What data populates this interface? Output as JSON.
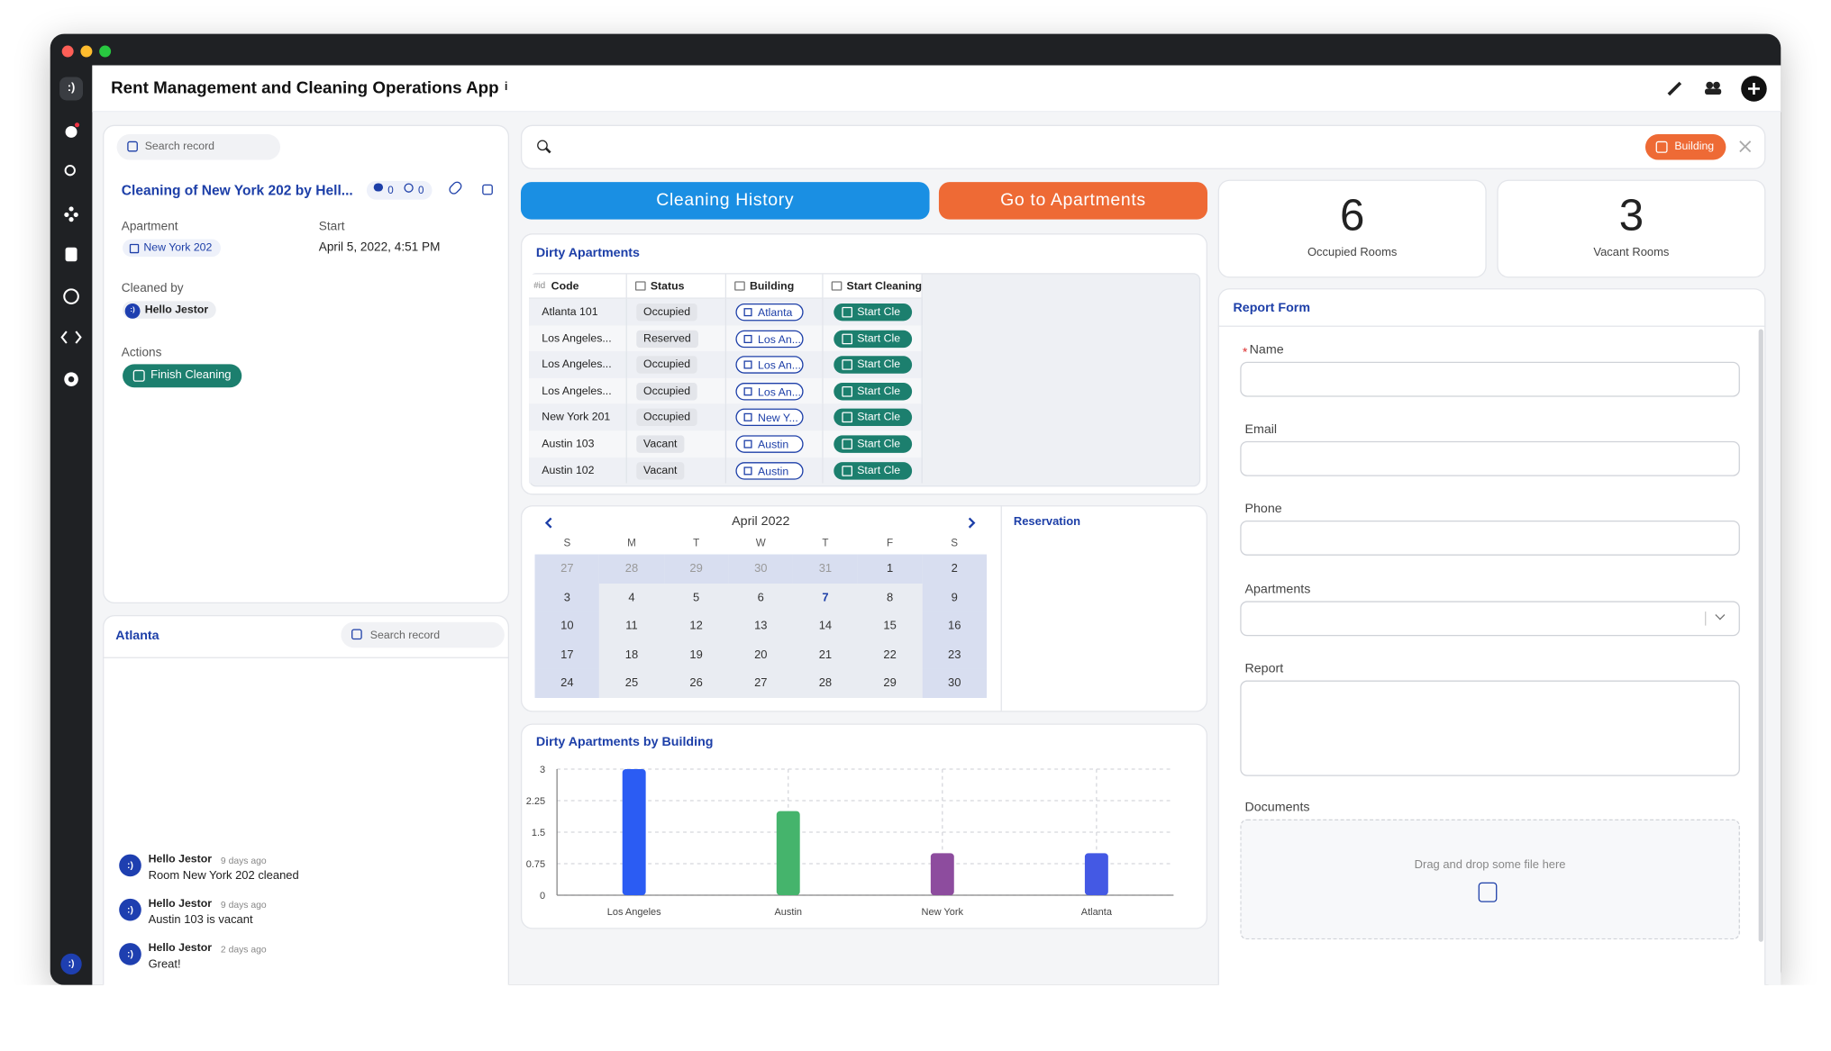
{
  "logo": ":)",
  "app": {
    "title": "Rent Management and Cleaning Operations App",
    "info": "i"
  },
  "record": {
    "search": "Search record",
    "title": "Cleaning of New York 202 by Hell...",
    "comments": 0,
    "mentions": 0,
    "apartment_label": "Apartment",
    "apartment": "New York 202",
    "start_label": "Start",
    "start": "April 5, 2022, 4:51 PM",
    "cleaned_by_label": "Cleaned by",
    "cleaned_by": "Hello Jestor",
    "actions_label": "Actions",
    "action": "Finish Cleaning"
  },
  "feed": {
    "title": "Atlanta",
    "search": "Search record",
    "messages": [
      {
        "author": "Hello Jestor",
        "time": "9 days ago",
        "text": "Room New York 202 cleaned"
      },
      {
        "author": "Hello Jestor",
        "time": "9 days ago",
        "text": "Austin 103 is vacant"
      },
      {
        "author": "Hello Jestor",
        "time": "2 days ago",
        "text": "Great!"
      }
    ]
  },
  "search_bar": {
    "filter": "Building"
  },
  "buttons": [
    "Cleaning History",
    "Go to Apartments"
  ],
  "stats": [
    {
      "value": 6,
      "label": "Occupied Rooms"
    },
    {
      "value": 3,
      "label": "Vacant Rooms"
    }
  ],
  "table": {
    "title": "Dirty Apartments",
    "code_prefix": "#id",
    "columns": [
      "Code",
      "Status",
      "Building",
      "Start Cleaning"
    ],
    "rows": [
      [
        "Atlanta 101",
        "Occupied",
        "Atlanta",
        "Start Cle"
      ],
      [
        "Los Angeles...",
        "Reserved",
        "Los An...",
        "Start Cle"
      ],
      [
        "Los Angeles...",
        "Occupied",
        "Los An...",
        "Start Cle"
      ],
      [
        "Los Angeles...",
        "Occupied",
        "Los An...",
        "Start Cle"
      ],
      [
        "New York 201",
        "Occupied",
        "New Y...",
        "Start Cle"
      ],
      [
        "Austin 103",
        "Vacant",
        "Austin",
        "Start Cle"
      ],
      [
        "Austin 102",
        "Vacant",
        "Austin",
        "Start Cle"
      ]
    ]
  },
  "calendar": {
    "month": "April 2022",
    "weekdays": [
      "S",
      "M",
      "T",
      "W",
      "T",
      "F",
      "S"
    ],
    "weeks": [
      [
        27,
        28,
        29,
        30,
        31,
        1,
        2
      ],
      [
        3,
        4,
        5,
        6,
        7,
        8,
        9
      ],
      [
        10,
        11,
        12,
        13,
        14,
        15,
        16
      ],
      [
        17,
        18,
        19,
        20,
        21,
        22,
        23
      ],
      [
        24,
        25,
        26,
        27,
        28,
        29,
        30
      ]
    ],
    "side_title": "Reservation"
  },
  "chart_data": {
    "type": "bar",
    "title": "Dirty Apartments by Building",
    "categories": [
      "Los Angeles",
      "Austin",
      "New York",
      "Atlanta"
    ],
    "values": [
      3,
      2,
      1,
      1
    ],
    "colors": [
      "#2b5cf3",
      "#45b46c",
      "#8d4c9e",
      "#4459e4"
    ],
    "ylim": [
      0,
      3
    ],
    "yticks": [
      0,
      0.75,
      1.5,
      2.25,
      3
    ],
    "grid": true
  },
  "form": {
    "title": "Report Form",
    "required_mark": "*",
    "fields": [
      "Name",
      "Email",
      "Phone",
      "Apartments",
      "Report",
      "Documents"
    ],
    "dropzone": "Drag and drop some file here"
  }
}
